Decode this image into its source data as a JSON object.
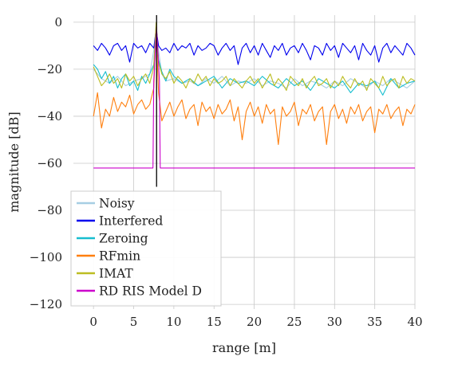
{
  "chart_data": {
    "type": "line",
    "title": "",
    "xlabel": "range [m]",
    "ylabel": "magnitude [dB]",
    "xlim": [
      -2.5,
      40
    ],
    "ylim": [
      -122,
      3
    ],
    "xticks": [
      0,
      5,
      10,
      15,
      20,
      25,
      30,
      35,
      40
    ],
    "yticks": [
      0,
      -20,
      -40,
      -60,
      -80,
      -100,
      -120
    ],
    "xtick_labels": [
      "0",
      "5",
      "10",
      "15",
      "20",
      "25",
      "30",
      "35",
      "40"
    ],
    "ytick_labels": [
      "0",
      "−20",
      "−40",
      "−60",
      "−80",
      "−100",
      "−120"
    ],
    "grid": true,
    "legend_position": "bottom-left",
    "target_marker": {
      "x": 7.85,
      "y_range": [
        -70,
        3
      ],
      "color": "#000000"
    },
    "series": [
      {
        "name": "Noisy",
        "color": "#a6cee3",
        "x": [
          0,
          1,
          2,
          3,
          4,
          5,
          6,
          7,
          7.5,
          7.8,
          8.1,
          8.5,
          9,
          10,
          11,
          12,
          13,
          14,
          15,
          16,
          17,
          18,
          19,
          20,
          21,
          22,
          23,
          24,
          25,
          26,
          27,
          28,
          29,
          30,
          31,
          32,
          33,
          34,
          35,
          36,
          37,
          38,
          39,
          40
        ],
        "y": [
          -20,
          -24,
          -26,
          -23,
          -27,
          -25,
          -24,
          -22,
          -12,
          -2,
          -12,
          -22,
          -25,
          -24,
          -26,
          -25,
          -27,
          -24,
          -26,
          -23,
          -27,
          -25,
          -26,
          -24,
          -27,
          -25,
          -26,
          -28,
          -24,
          -27,
          -25,
          -26,
          -28,
          -25,
          -27,
          -24,
          -26,
          -28,
          -25,
          -27,
          -24,
          -26,
          -28,
          -25
        ]
      },
      {
        "name": "Interfered",
        "color": "#0000ee",
        "x": [
          0,
          0.5,
          1,
          1.5,
          2,
          2.5,
          3,
          3.5,
          4,
          4.5,
          5,
          5.5,
          6,
          6.5,
          7,
          7.5,
          7.8,
          8.1,
          8.5,
          9,
          9.5,
          10,
          10.5,
          11,
          11.5,
          12,
          12.5,
          13,
          13.5,
          14,
          14.5,
          15,
          15.5,
          16,
          16.5,
          17,
          17.5,
          18,
          18.5,
          19,
          19.5,
          20,
          20.5,
          21,
          21.5,
          22,
          22.5,
          23,
          23.5,
          24,
          24.5,
          25,
          25.5,
          26,
          26.5,
          27,
          27.5,
          28,
          28.5,
          29,
          29.5,
          30,
          30.5,
          31,
          31.5,
          32,
          32.5,
          33,
          33.5,
          34,
          34.5,
          35,
          35.5,
          36,
          36.5,
          37,
          37.5,
          38,
          38.5,
          39,
          39.5,
          40
        ],
        "y": [
          -10,
          -12,
          -9,
          -11,
          -14,
          -10,
          -9,
          -12,
          -10,
          -17,
          -9,
          -11,
          -10,
          -13,
          -9,
          -11,
          -3,
          -10,
          -12,
          -11,
          -13,
          -9,
          -12,
          -10,
          -11,
          -9,
          -14,
          -10,
          -12,
          -11,
          -9,
          -10,
          -14,
          -11,
          -9,
          -12,
          -10,
          -18,
          -11,
          -9,
          -13,
          -10,
          -14,
          -9,
          -12,
          -15,
          -10,
          -12,
          -9,
          -14,
          -11,
          -10,
          -13,
          -9,
          -12,
          -16,
          -10,
          -11,
          -14,
          -9,
          -12,
          -10,
          -15,
          -9,
          -11,
          -13,
          -10,
          -16,
          -9,
          -12,
          -14,
          -10,
          -17,
          -11,
          -9,
          -13,
          -10,
          -12,
          -14,
          -9,
          -11,
          -14
        ]
      },
      {
        "name": "Zeroing",
        "color": "#17becf",
        "x": [
          0,
          0.5,
          1,
          1.5,
          2,
          2.5,
          3,
          3.5,
          4,
          4.5,
          5,
          5.5,
          6,
          6.5,
          7,
          7.5,
          7.8,
          8.1,
          8.5,
          9,
          9.5,
          10,
          11,
          12,
          13,
          14,
          15,
          16,
          17,
          18,
          19,
          20,
          21,
          22,
          23,
          24,
          25,
          26,
          27,
          28,
          29,
          30,
          31,
          32,
          33,
          34,
          35,
          36,
          37,
          38,
          39,
          40
        ],
        "y": [
          -18,
          -20,
          -24,
          -21,
          -26,
          -23,
          -28,
          -24,
          -22,
          -27,
          -25,
          -29,
          -23,
          -26,
          -22,
          -18,
          -1,
          -16,
          -21,
          -25,
          -20,
          -23,
          -26,
          -24,
          -27,
          -25,
          -23,
          -28,
          -24,
          -26,
          -25,
          -27,
          -23,
          -26,
          -28,
          -24,
          -27,
          -25,
          -29,
          -24,
          -26,
          -28,
          -25,
          -30,
          -26,
          -27,
          -25,
          -31,
          -24,
          -28,
          -26,
          -25
        ]
      },
      {
        "name": "RFmin",
        "color": "#ff7f0e",
        "x": [
          0,
          0.5,
          1,
          1.5,
          2,
          2.5,
          3,
          3.5,
          4,
          4.5,
          5,
          5.5,
          6,
          6.5,
          7,
          7.5,
          7.8,
          8.1,
          8.5,
          9,
          9.5,
          10,
          10.5,
          11,
          11.5,
          12,
          12.5,
          13,
          13.5,
          14,
          14.5,
          15,
          15.5,
          16,
          16.5,
          17,
          17.5,
          18,
          18.5,
          19,
          19.5,
          20,
          20.5,
          21,
          21.5,
          22,
          22.5,
          23,
          23.5,
          24,
          24.5,
          25,
          25.5,
          26,
          26.5,
          27,
          27.5,
          28,
          28.5,
          29,
          29.5,
          30,
          30.5,
          31,
          31.5,
          32,
          32.5,
          33,
          33.5,
          34,
          34.5,
          35,
          35.5,
          36,
          36.5,
          37,
          37.5,
          38,
          38.5,
          39,
          39.5,
          40
        ],
        "y": [
          -40,
          -30,
          -45,
          -37,
          -40,
          -32,
          -38,
          -34,
          -36,
          -31,
          -39,
          -35,
          -33,
          -37,
          -35,
          -28,
          -3,
          -30,
          -42,
          -38,
          -34,
          -40,
          -36,
          -33,
          -41,
          -37,
          -35,
          -44,
          -34,
          -38,
          -36,
          -41,
          -35,
          -39,
          -37,
          -33,
          -42,
          -36,
          -50,
          -38,
          -34,
          -40,
          -36,
          -43,
          -35,
          -39,
          -37,
          -52,
          -36,
          -40,
          -38,
          -34,
          -44,
          -37,
          -39,
          -35,
          -42,
          -38,
          -36,
          -52,
          -38,
          -35,
          -41,
          -37,
          -43,
          -36,
          -39,
          -35,
          -42,
          -38,
          -36,
          -47,
          -37,
          -39,
          -35,
          -41,
          -38,
          -36,
          -44,
          -37,
          -39,
          -35
        ]
      },
      {
        "name": "IMAT",
        "color": "#bcbd22",
        "x": [
          0,
          0.5,
          1,
          1.5,
          2,
          2.5,
          3,
          3.5,
          4,
          4.5,
          5,
          5.5,
          6,
          6.5,
          7,
          7.5,
          7.8,
          8.1,
          8.5,
          9,
          9.5,
          10,
          10.5,
          11,
          11.5,
          12,
          12.5,
          13,
          13.5,
          14,
          14.5,
          15,
          15.5,
          16,
          16.5,
          17,
          17.5,
          18,
          18.5,
          19,
          19.5,
          20,
          20.5,
          21,
          21.5,
          22,
          22.5,
          23,
          23.5,
          24,
          24.5,
          25,
          25.5,
          26,
          26.5,
          27,
          27.5,
          28,
          28.5,
          29,
          29.5,
          30,
          30.5,
          31,
          31.5,
          32,
          32.5,
          33,
          33.5,
          34,
          34.5,
          35,
          35.5,
          36,
          36.5,
          37,
          37.5,
          38,
          38.5,
          39,
          39.5,
          40
        ],
        "y": [
          -19,
          -23,
          -27,
          -25,
          -22,
          -26,
          -24,
          -28,
          -22,
          -25,
          -23,
          -27,
          -24,
          -22,
          -26,
          -19,
          0,
          -17,
          -22,
          -24,
          -21,
          -26,
          -23,
          -25,
          -28,
          -24,
          -26,
          -22,
          -25,
          -23,
          -27,
          -24,
          -26,
          -25,
          -23,
          -27,
          -24,
          -26,
          -28,
          -25,
          -23,
          -26,
          -24,
          -28,
          -25,
          -22,
          -27,
          -24,
          -26,
          -29,
          -23,
          -25,
          -27,
          -24,
          -28,
          -25,
          -23,
          -27,
          -26,
          -24,
          -28,
          -25,
          -27,
          -23,
          -26,
          -28,
          -24,
          -27,
          -25,
          -29,
          -24,
          -26,
          -28,
          -23,
          -27,
          -25,
          -24,
          -28,
          -23,
          -26,
          -24,
          -25
        ]
      },
      {
        "name": "RD RIS Model D",
        "color": "#cc00cc",
        "x": [
          0,
          7.4,
          7.5,
          7.85,
          8.2,
          8.3,
          40
        ],
        "y": [
          -62,
          -62,
          -25,
          -2,
          -25,
          -62,
          -62
        ]
      }
    ]
  }
}
